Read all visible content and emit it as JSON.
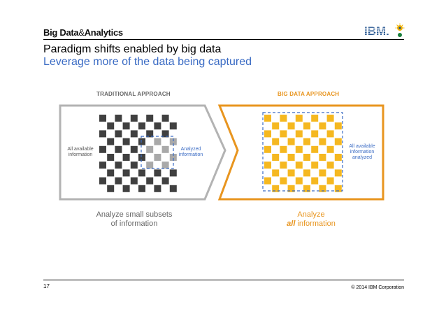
{
  "header": {
    "brand_main": "Big Data",
    "brand_amp": "&",
    "brand_tail": "Analytics",
    "logo_text": "IBM."
  },
  "slide": {
    "title": "Paradigm shifts enabled by big data",
    "subtitle": "Leverage more of the data being captured"
  },
  "traditional": {
    "label": "TRADITIONAL APPROACH",
    "all_info_label": "All available information",
    "analyzed_label": "Analyzed information",
    "caption_line1": "Analyze small subsets",
    "caption_line2": "of information"
  },
  "big_data": {
    "label": "BIG DATA APPROACH",
    "all_analyzed_label": "All available information analyzed",
    "caption_line1": "Analyze",
    "caption_emphasis": "all",
    "caption_rest": " information"
  },
  "colors": {
    "accent_blue": "#3a6bc4",
    "accent_orange": "#e8951f",
    "square_orange": "#f5b820",
    "square_dark": "#404040",
    "square_gray": "#a9a9a9",
    "panel_gray": "#b3b3b3"
  },
  "footer": {
    "page_number": "17",
    "copyright": "© 2014 IBM Corporation"
  }
}
